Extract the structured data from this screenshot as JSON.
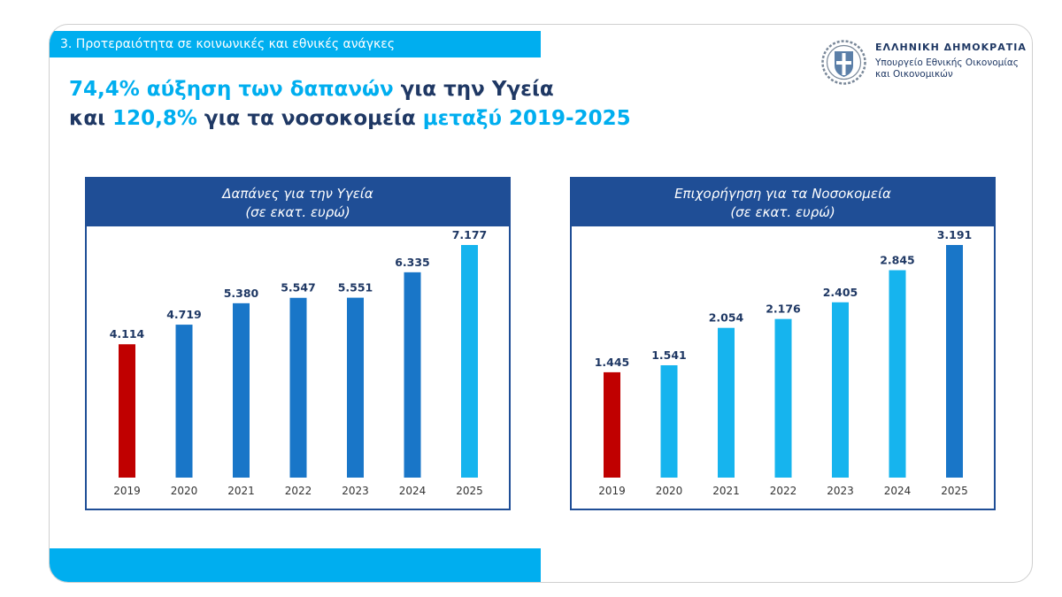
{
  "section_label": "3. Προτεραιότητα σε κοινωνικές και εθνικές ανάγκες",
  "headline": {
    "line1_a": "74,4% αύξηση των δαπανών",
    "line1_b": " για την Υγεία",
    "line2_a": "και ",
    "line2_b": "120,8%",
    "line2_c": " για τα νοσοκομεία ",
    "line2_d": "μεταξύ 2019-2025"
  },
  "logo": {
    "line1": "ΕΛΛΗΝΙΚΗ ΔΗΜΟΚΡΑΤΙΑ",
    "line2": "Υπουργείο Εθνικής Οικονομίας",
    "line3": "και Οικονομικών"
  },
  "colors": {
    "accent_cyan": "#00aeef",
    "dark_blue": "#1f4e96",
    "highlight_red": "#c00000",
    "bar_blue": "#1976c8"
  },
  "chart_data": [
    {
      "type": "bar",
      "title": "Δαπάνες για την Υγεία",
      "subtitle": "(σε εκατ. ευρώ)",
      "categories": [
        "2019",
        "2020",
        "2021",
        "2022",
        "2023",
        "2024",
        "2025"
      ],
      "values": [
        4114,
        4719,
        5380,
        5547,
        5551,
        6335,
        7177
      ],
      "value_labels": [
        "4.114",
        "4.719",
        "5.380",
        "5.547",
        "5.551",
        "6.335",
        "7.177"
      ],
      "bar_colors": [
        "#c00000",
        "#1976c8",
        "#1976c8",
        "#1976c8",
        "#1976c8",
        "#1976c8",
        "#16b4ee"
      ],
      "grid": false
    },
    {
      "type": "bar",
      "title": "Επιχορήγηση για τα Νοσοκομεία",
      "subtitle": "(σε εκατ. ευρώ)",
      "categories": [
        "2019",
        "2020",
        "2021",
        "2022",
        "2023",
        "2024",
        "2025"
      ],
      "values": [
        1445,
        1541,
        2054,
        2176,
        2405,
        2845,
        3191
      ],
      "value_labels": [
        "1.445",
        "1.541",
        "2.054",
        "2.176",
        "2.405",
        "2.845",
        "3.191"
      ],
      "bar_colors": [
        "#c00000",
        "#16b4ee",
        "#16b4ee",
        "#16b4ee",
        "#16b4ee",
        "#16b4ee",
        "#1976c8"
      ],
      "grid": false
    }
  ]
}
